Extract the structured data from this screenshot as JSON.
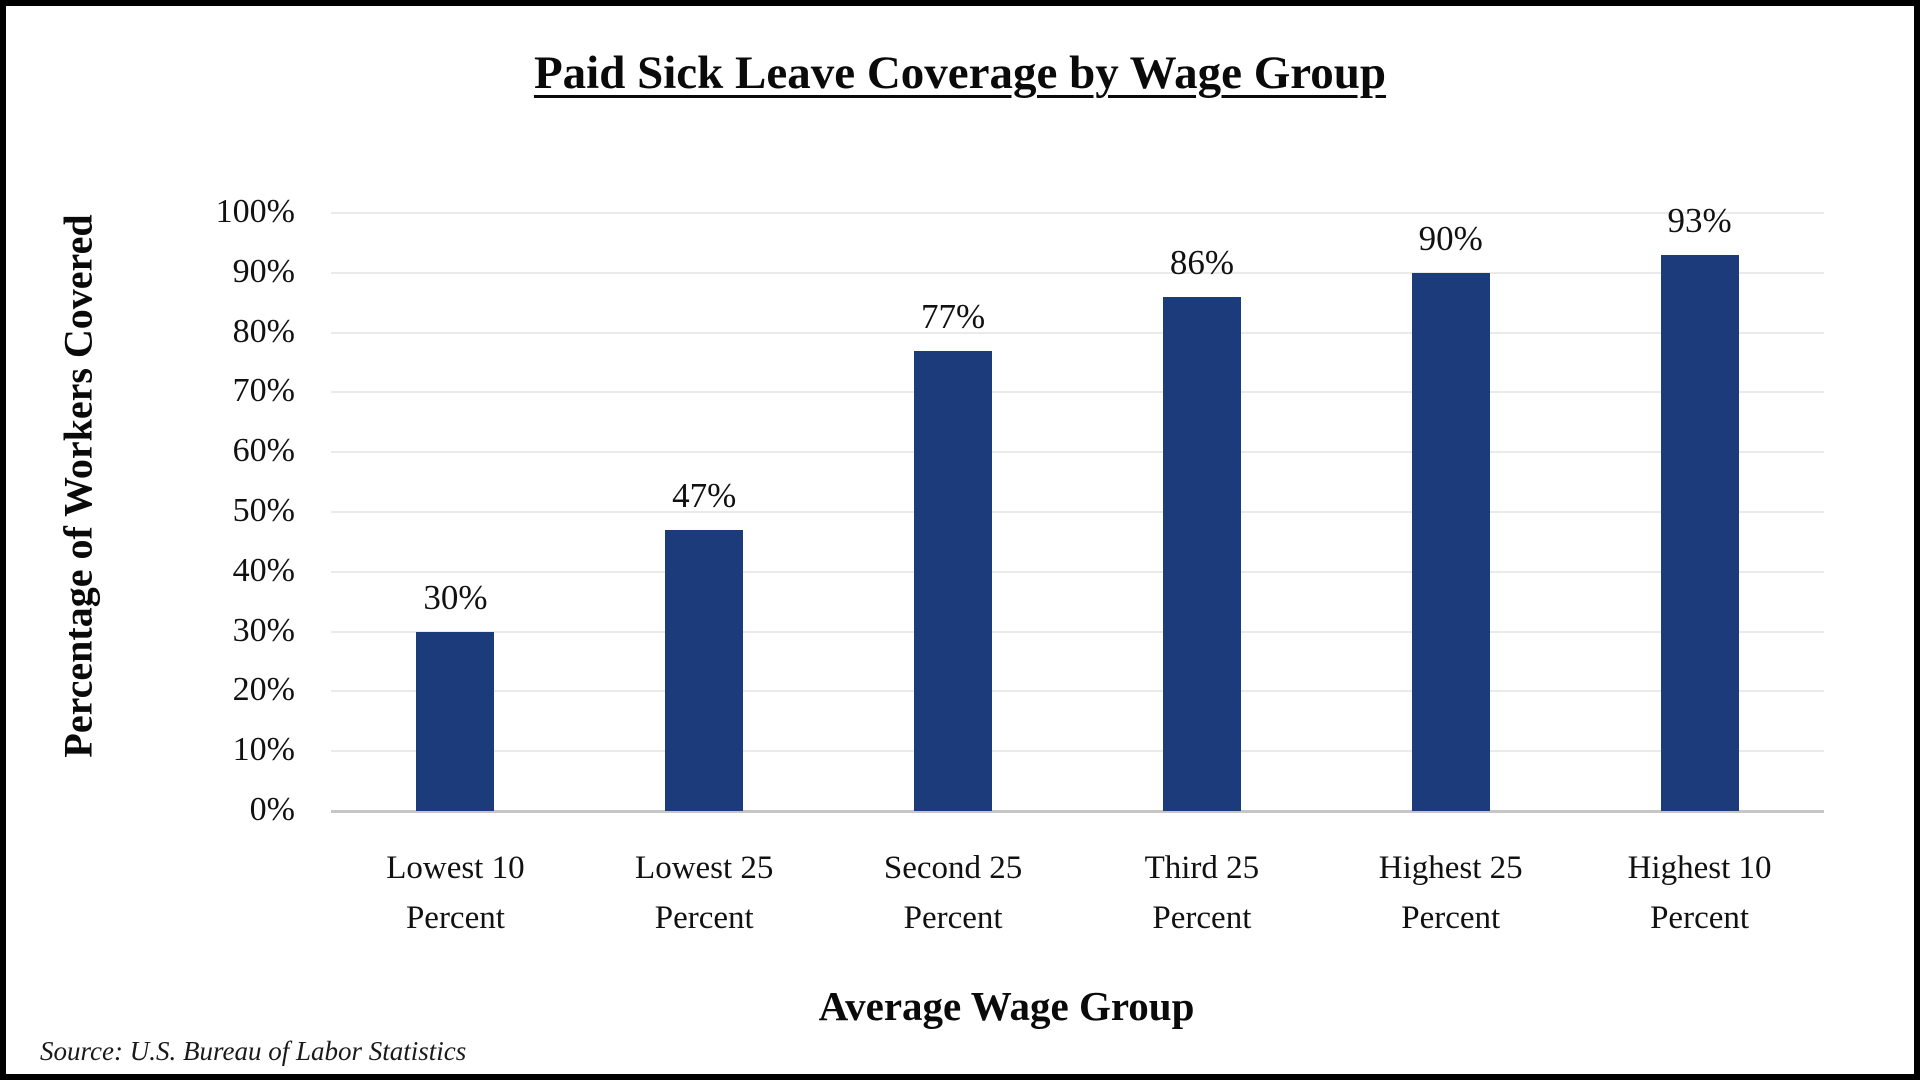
{
  "frame": {
    "background": "#ffffff",
    "border_color": "#000000"
  },
  "chart_data": {
    "type": "bar",
    "title": "Paid Sick Leave Coverage by Wage Group",
    "xlabel": "Average Wage Group",
    "ylabel": "Percentage of Workers Covered",
    "categories": [
      "Lowest 10\nPercent",
      "Lowest 25\nPercent",
      "Second 25\nPercent",
      "Third 25\nPercent",
      "Highest 25\nPercent",
      "Highest 10\nPercent"
    ],
    "values": [
      30,
      47,
      77,
      86,
      90,
      93
    ],
    "data_labels": [
      "30%",
      "47%",
      "77%",
      "86%",
      "90%",
      "93%"
    ],
    "y_ticks": [
      "0%",
      "10%",
      "20%",
      "30%",
      "40%",
      "50%",
      "60%",
      "70%",
      "80%",
      "90%",
      "100%"
    ],
    "ylim": [
      0,
      100
    ],
    "grid": true,
    "legend": "none",
    "bar_color": "#1C3B7A",
    "gridline_color": "#EAEAEA",
    "axis_line_color": "#C6C6C6",
    "label_color": "#111111",
    "source": "Source: U.S. Bureau of Labor Statistics"
  }
}
